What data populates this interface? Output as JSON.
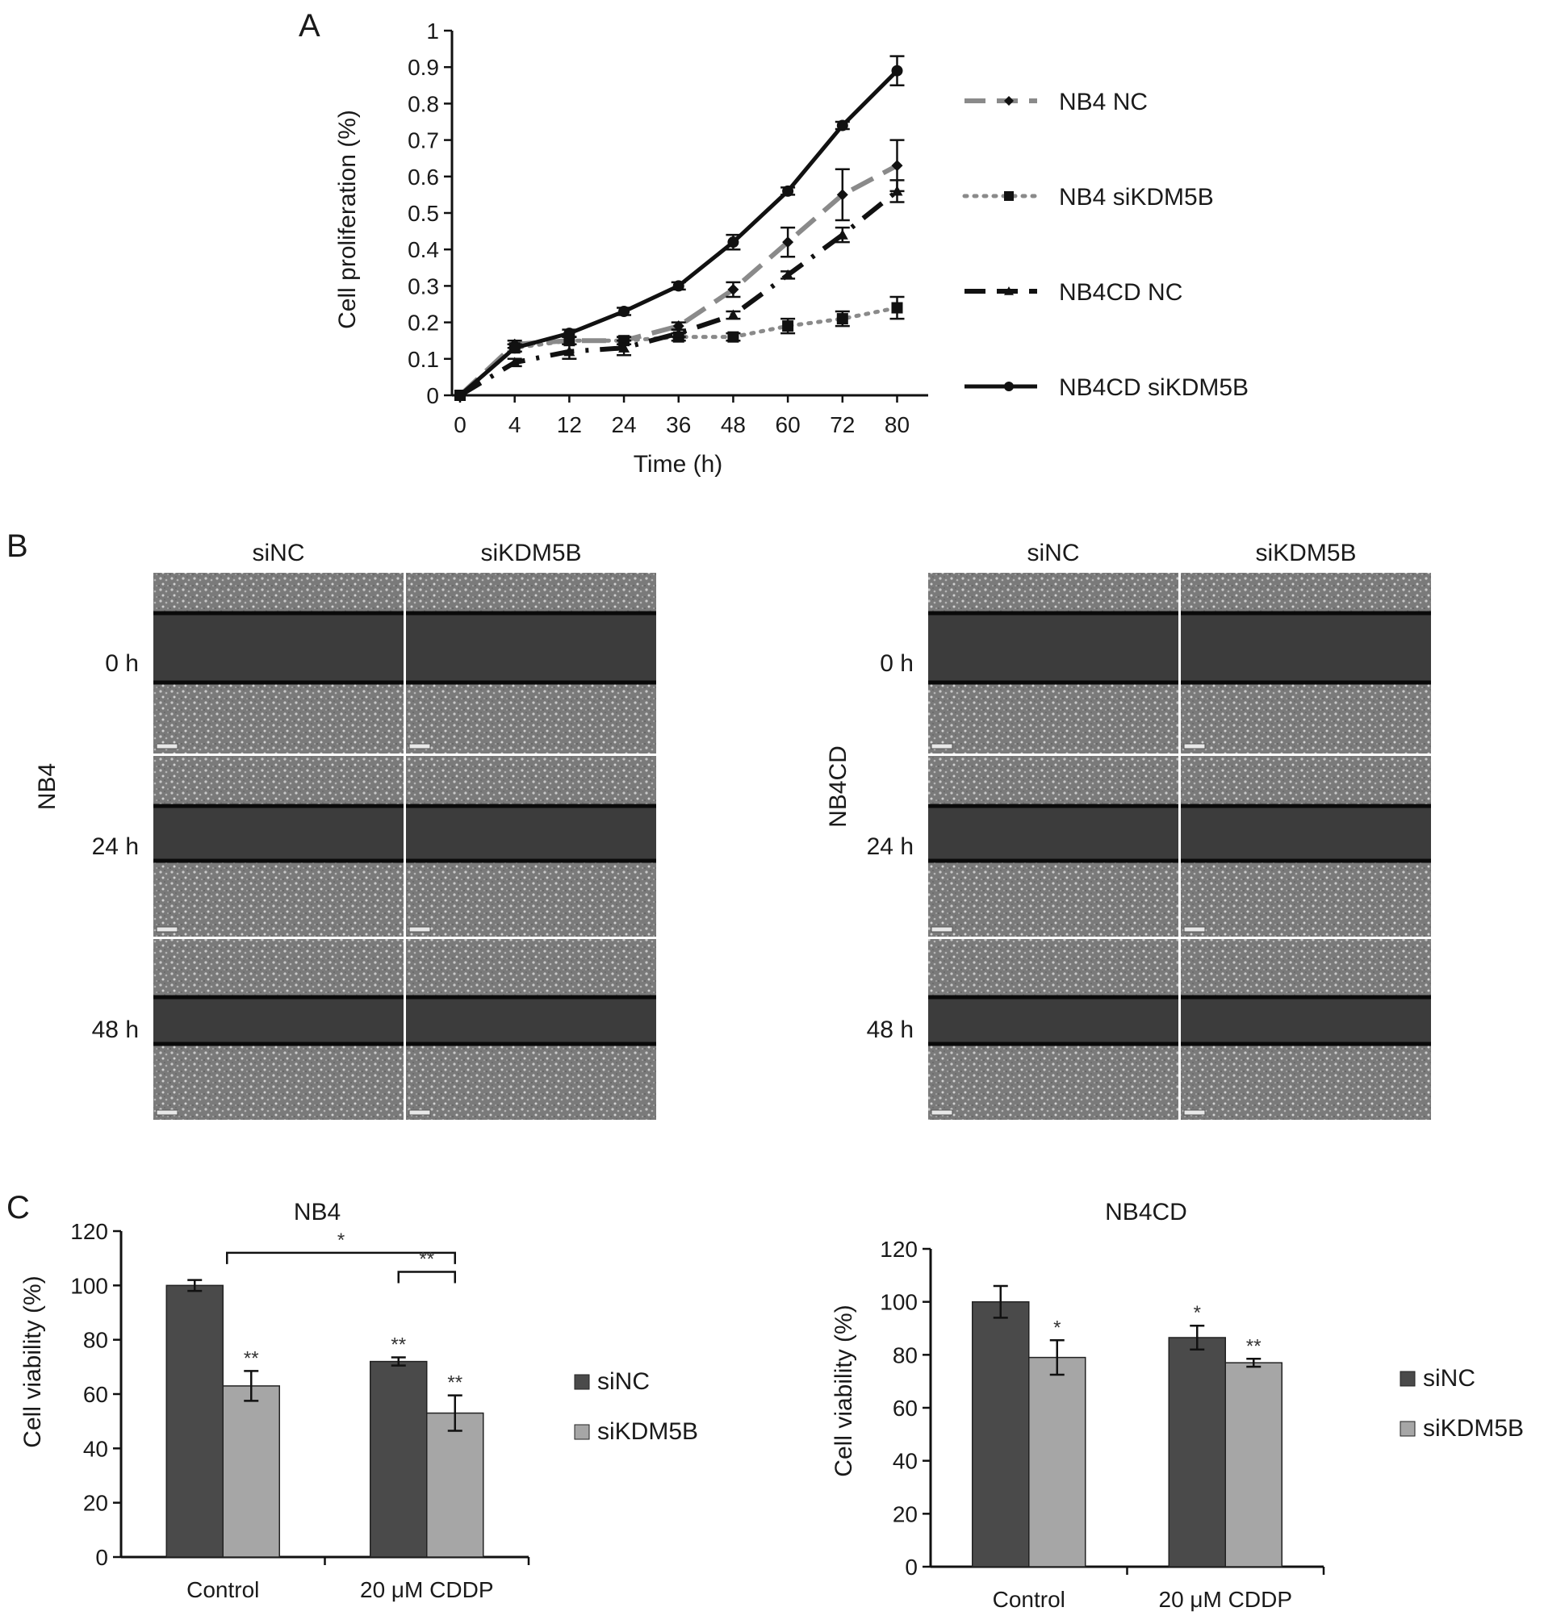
{
  "panels": {
    "A": "A",
    "B": "B",
    "C": "C"
  },
  "chart_data": [
    {
      "type": "line",
      "panel": "A",
      "xlabel": "Time (h)",
      "ylabel": "Cell proliferation (%)",
      "categories": [
        "0",
        "4",
        "12",
        "24",
        "36",
        "48",
        "60",
        "72",
        "80"
      ],
      "y_ticks": [
        "0",
        "0.1",
        "0.2",
        "0.3",
        "0.4",
        "0.5",
        "0.6",
        "0.7",
        "0.8",
        "0.9",
        "1"
      ],
      "ylim": [
        0,
        1
      ],
      "legend_position": "right",
      "series": [
        {
          "name": "NB4 NC",
          "style": "dashed-gray",
          "marker": "diamond",
          "color": "#8a8a8a",
          "values": [
            0,
            0.14,
            0.15,
            0.15,
            0.19,
            0.29,
            0.42,
            0.55,
            0.63
          ],
          "errors": [
            0,
            0.01,
            0.01,
            0.01,
            0.01,
            0.02,
            0.04,
            0.07,
            0.07
          ]
        },
        {
          "name": "NB4 siKDM5B",
          "style": "dotted-gray",
          "marker": "square",
          "color": "#8a8a8a",
          "values": [
            0,
            0.13,
            0.15,
            0.15,
            0.16,
            0.16,
            0.19,
            0.21,
            0.24
          ],
          "errors": [
            0,
            0.01,
            0.01,
            0.01,
            0.01,
            0.01,
            0.02,
            0.02,
            0.03
          ]
        },
        {
          "name": "NB4CD NC",
          "style": "dashdot-black",
          "marker": "triangle",
          "color": "#111111",
          "values": [
            0,
            0.09,
            0.12,
            0.13,
            0.17,
            0.22,
            0.33,
            0.44,
            0.56
          ],
          "errors": [
            0,
            0.01,
            0.02,
            0.02,
            0.01,
            0.01,
            0.01,
            0.02,
            0.03
          ]
        },
        {
          "name": "NB4CD siKDM5B",
          "style": "solid-black",
          "marker": "circle",
          "color": "#111111",
          "values": [
            0,
            0.13,
            0.17,
            0.23,
            0.3,
            0.42,
            0.56,
            0.74,
            0.89
          ],
          "errors": [
            0,
            0.01,
            0.01,
            0.01,
            0.01,
            0.02,
            0.01,
            0.01,
            0.04
          ]
        }
      ]
    },
    {
      "type": "bar",
      "panel": "C",
      "title": "NB4",
      "ylabel": "Cell viability (%)",
      "categories": [
        "Control",
        "20 μM CDDP"
      ],
      "y_ticks": [
        "0",
        "20",
        "40",
        "60",
        "80",
        "100",
        "120"
      ],
      "ylim": [
        0,
        120
      ],
      "legend_position": "right",
      "series": [
        {
          "name": "siNC",
          "color": "#4a4a4a",
          "values": [
            100,
            72
          ],
          "errors": [
            2,
            1.5
          ],
          "stars": [
            "",
            "**"
          ]
        },
        {
          "name": "siKDM5B",
          "color": "#a6a6a6",
          "values": [
            63,
            53
          ],
          "errors": [
            5.5,
            6.5
          ],
          "stars": [
            "**",
            "**"
          ]
        }
      ],
      "brackets": [
        {
          "label": "*",
          "from": "Control siNC",
          "to": "20 μM CDDP siKDM5B"
        },
        {
          "label": "**",
          "from": "20 μM CDDP siNC",
          "to": "20 μM CDDP siKDM5B"
        }
      ]
    },
    {
      "type": "bar",
      "panel": "C",
      "title": "NB4CD",
      "ylabel": "Cell viability (%)",
      "categories": [
        "Control",
        "20 μM CDDP"
      ],
      "y_ticks": [
        "0",
        "20",
        "40",
        "60",
        "80",
        "100",
        "120"
      ],
      "ylim": [
        0,
        120
      ],
      "legend_position": "right",
      "series": [
        {
          "name": "siNC",
          "color": "#4a4a4a",
          "values": [
            100,
            86.5
          ],
          "errors": [
            6,
            4.5
          ],
          "stars": [
            "",
            "*"
          ]
        },
        {
          "name": "siKDM5B",
          "color": "#a6a6a6",
          "values": [
            79,
            77
          ],
          "errors": [
            6.5,
            1.5
          ],
          "stars": [
            "*",
            "**"
          ]
        }
      ]
    }
  ],
  "scratch": {
    "left": {
      "group": "NB4",
      "columns": [
        "siNC",
        "siKDM5B"
      ],
      "rows": [
        "0 h",
        "24 h",
        "48 h"
      ]
    },
    "right": {
      "group": "NB4CD",
      "columns": [
        "siNC",
        "siKDM5B"
      ],
      "rows": [
        "0 h",
        "24 h",
        "48 h"
      ]
    }
  }
}
